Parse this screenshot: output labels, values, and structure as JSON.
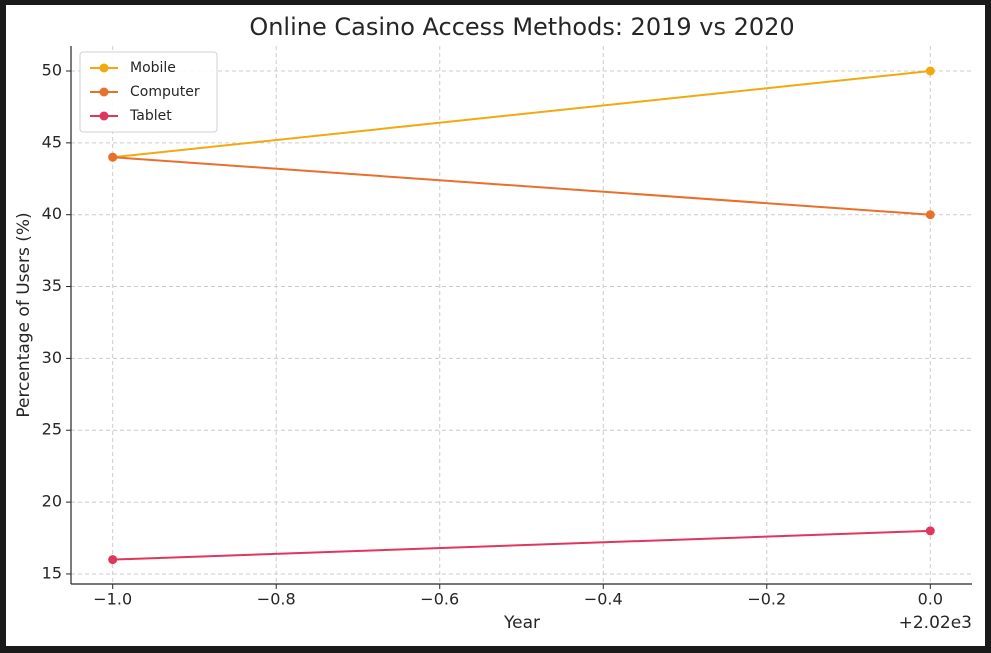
{
  "chart_data": {
    "type": "line",
    "title": "Online Casino Access Methods: 2019 vs 2020",
    "x_label": "Year",
    "y_label": "Percentage of Users (%)",
    "x_offset_label": "+2.02e3",
    "x": [
      -1,
      0
    ],
    "series": [
      {
        "name": "Mobile",
        "color": "#f2a90f",
        "values": [
          44,
          50
        ]
      },
      {
        "name": "Computer",
        "color": "#e8702a",
        "values": [
          44,
          40
        ]
      },
      {
        "name": "Tablet",
        "color": "#e0365e",
        "values": [
          16,
          18
        ]
      }
    ],
    "xlim": [
      -1.051,
      0.051
    ],
    "xticks": [
      {
        "value": -1,
        "label": "−1.0"
      },
      {
        "value": -0.8,
        "label": "−0.8"
      },
      {
        "value": -0.6,
        "label": "−0.6"
      },
      {
        "value": -0.4,
        "label": "−0.4"
      },
      {
        "value": -0.2,
        "label": "−0.2"
      },
      {
        "value": 0,
        "label": "0.0"
      }
    ],
    "ylim": [
      14.3,
      51.74
    ],
    "yticks": [
      15,
      20,
      25,
      30,
      35,
      40,
      45,
      50
    ],
    "grid": true,
    "legend": "upper-left"
  }
}
